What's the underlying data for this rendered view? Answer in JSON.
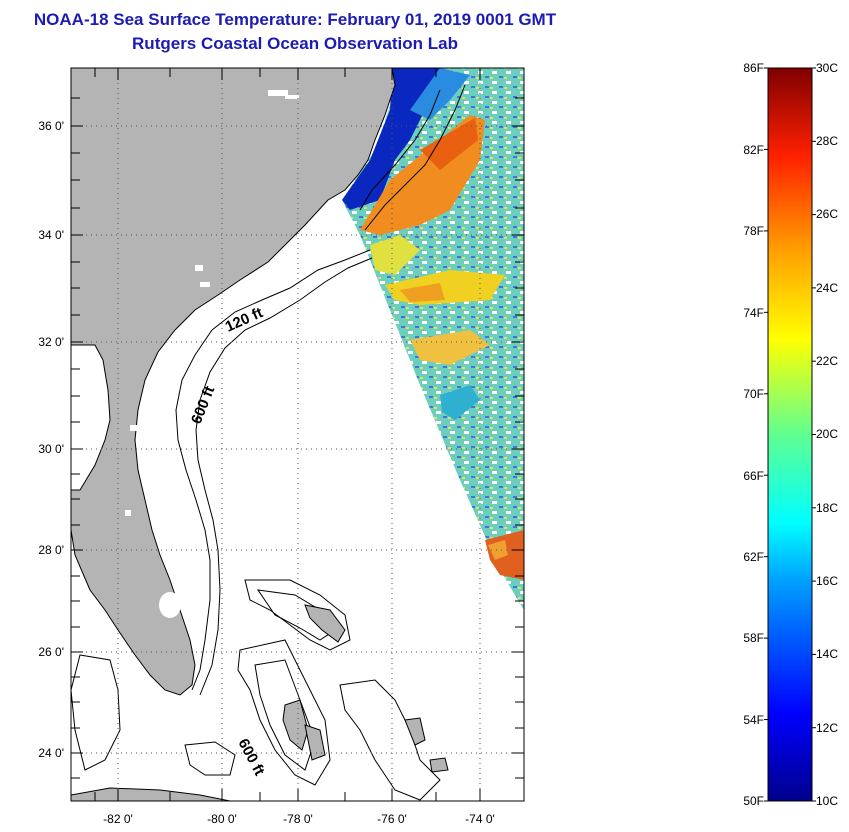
{
  "title": {
    "line1": "NOAA-18 Sea Surface Temperature:  February 01, 2019 0001 GMT",
    "line2": "Rutgers Coastal Ocean Observation Lab"
  },
  "map": {
    "lat_labels": [
      "36 0'",
      "34 0'",
      "32 0'",
      "30 0'",
      "28 0'",
      "26 0'",
      "24 0'"
    ],
    "lon_labels": [
      "-82 0'",
      "-80 0'",
      "-78 0'",
      "-76 0'",
      "-74 0'"
    ],
    "isobath_labels": [
      "120 ft",
      "600 ft",
      "600 ft"
    ],
    "land_color": "#b4b4b4"
  },
  "colorbar": {
    "f_labels": [
      "86F",
      "82F",
      "78F",
      "74F",
      "70F",
      "66F",
      "62F",
      "58F",
      "54F",
      "50F"
    ],
    "c_labels": [
      "30C",
      "28C",
      "26C",
      "24C",
      "22C",
      "20C",
      "18C",
      "16C",
      "14C",
      "12C",
      "10C"
    ],
    "f_range": [
      50,
      86
    ],
    "c_range": [
      10,
      30
    ]
  }
}
